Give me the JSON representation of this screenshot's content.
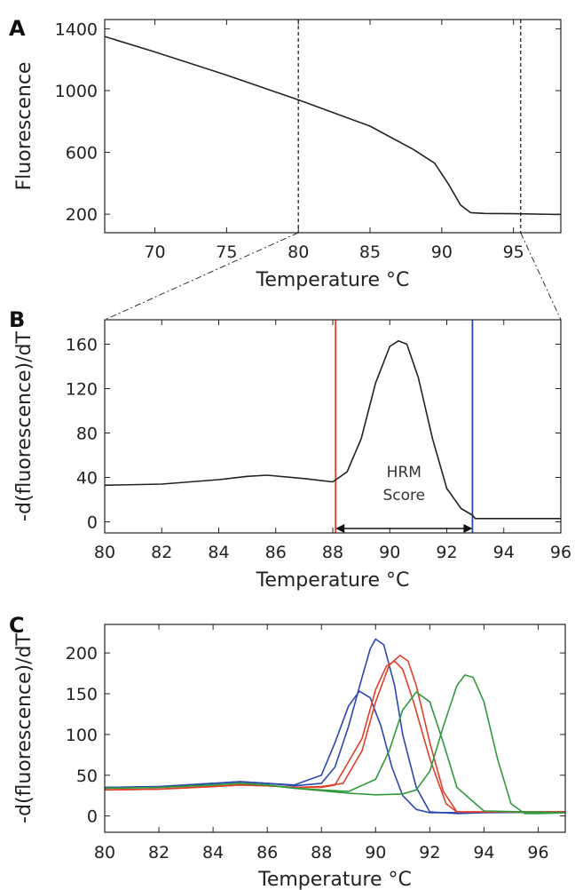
{
  "chart_data": [
    {
      "panel": "A",
      "type": "line",
      "xlabel": "Temperature °C",
      "ylabel": "Fluorescence",
      "xlim": [
        66.5,
        98.3
      ],
      "ylim": [
        80,
        1460
      ],
      "xticks": [
        70,
        75,
        80,
        85,
        90,
        95
      ],
      "yticks": [
        200,
        600,
        1000,
        1400
      ],
      "grid": false,
      "series": [
        {
          "color": "#222222",
          "x": [
            66.5,
            70,
            75,
            80,
            85,
            88,
            89.5,
            90.5,
            91.3,
            92,
            93,
            95,
            98.3
          ],
          "y": [
            1350,
            1250,
            1100,
            940,
            770,
            620,
            530,
            390,
            260,
            210,
            205,
            203,
            198
          ]
        }
      ],
      "vlines": [
        {
          "x": 80,
          "style": "dashed",
          "color": "#333333"
        },
        {
          "x": 95.5,
          "style": "dashed",
          "color": "#333333"
        }
      ]
    },
    {
      "panel": "B",
      "type": "line",
      "xlabel": "Temperature °C",
      "ylabel": "-d(fluorescence)/dT",
      "xlim": [
        80,
        96
      ],
      "ylim": [
        -10,
        182
      ],
      "xticks": [
        80,
        82,
        84,
        86,
        88,
        90,
        92,
        94,
        96
      ],
      "yticks": [
        0,
        40,
        80,
        120,
        160
      ],
      "grid": false,
      "series": [
        {
          "color": "#222222",
          "x": [
            80,
            82,
            84,
            85,
            85.7,
            87,
            88,
            88.5,
            89,
            89.5,
            90,
            90.3,
            90.6,
            91,
            91.5,
            92,
            92.5,
            92.9,
            93,
            96
          ],
          "y": [
            33,
            34,
            38,
            41,
            42,
            39,
            36,
            45,
            75,
            125,
            158,
            163,
            160,
            130,
            75,
            30,
            12,
            6,
            3,
            3
          ]
        }
      ],
      "vlines": [
        {
          "x": 88.1,
          "color": "#e0402a"
        },
        {
          "x": 92.9,
          "color": "#2a48b0"
        }
      ],
      "annotation": {
        "text": [
          "HRM",
          "Score"
        ],
        "arrow_from": 88.1,
        "arrow_to": 92.9,
        "arrow_y": -6
      }
    },
    {
      "panel": "C",
      "type": "line",
      "xlabel": "Temperature °C",
      "ylabel": "-d(fluorescence)/dT",
      "xlim": [
        80,
        97
      ],
      "ylim": [
        -20,
        235
      ],
      "xticks": [
        80,
        82,
        84,
        86,
        88,
        90,
        92,
        94,
        96
      ],
      "yticks": [
        0,
        50,
        100,
        150,
        200
      ],
      "grid": false,
      "series": [
        {
          "color": "#2a48b0",
          "x": [
            80,
            82,
            84,
            85,
            86,
            87,
            88,
            88.5,
            89,
            89.5,
            89.8,
            90,
            90.3,
            90.7,
            91,
            91.5,
            92,
            93,
            94,
            97
          ],
          "y": [
            35,
            36,
            40,
            42,
            40,
            37,
            40,
            60,
            110,
            170,
            205,
            217,
            210,
            160,
            100,
            35,
            5,
            3,
            4,
            5
          ]
        },
        {
          "color": "#2a48b0",
          "x": [
            80,
            82,
            84,
            85,
            86,
            87,
            88,
            88.5,
            89,
            89.4,
            89.8,
            90.2,
            90.6,
            91,
            91.5,
            92,
            97
          ],
          "y": [
            35,
            36,
            40,
            42,
            40,
            38,
            50,
            90,
            135,
            153,
            145,
            110,
            60,
            25,
            8,
            4,
            5
          ]
        },
        {
          "color": "#e0402a",
          "x": [
            80,
            82,
            84,
            85,
            86,
            87,
            88,
            88.8,
            89.5,
            90,
            90.5,
            90.9,
            91.2,
            91.5,
            92,
            92.5,
            93,
            97
          ],
          "y": [
            32,
            33,
            36,
            38,
            37,
            35,
            36,
            40,
            80,
            140,
            185,
            197,
            190,
            160,
            90,
            30,
            5,
            5
          ]
        },
        {
          "color": "#e0402a",
          "x": [
            80,
            82,
            84,
            85,
            86,
            87,
            88,
            88.5,
            89.5,
            90,
            90.4,
            90.7,
            91,
            91.4,
            92,
            92.6,
            93,
            97
          ],
          "y": [
            32,
            33,
            36,
            38,
            37,
            35,
            35,
            38,
            95,
            155,
            184,
            190,
            180,
            140,
            70,
            15,
            5,
            5
          ]
        },
        {
          "color": "#2f9a3a",
          "x": [
            80,
            82,
            84,
            85,
            86,
            87,
            88,
            89,
            90,
            90.5,
            91,
            91.5,
            92,
            92.5,
            93,
            94,
            97
          ],
          "y": [
            34,
            35,
            38,
            40,
            38,
            34,
            32,
            30,
            45,
            80,
            130,
            152,
            140,
            90,
            35,
            6,
            4
          ]
        },
        {
          "color": "#2f9a3a",
          "x": [
            80,
            82,
            84,
            85,
            86,
            87,
            88,
            89,
            90,
            91,
            91.5,
            92,
            92.5,
            93,
            93.3,
            93.6,
            94,
            94.5,
            95,
            95.5,
            96,
            97
          ],
          "y": [
            34,
            35,
            38,
            40,
            38,
            34,
            31,
            28,
            26,
            27,
            32,
            55,
            110,
            160,
            173,
            170,
            140,
            70,
            15,
            3,
            3,
            4
          ]
        }
      ]
    }
  ]
}
